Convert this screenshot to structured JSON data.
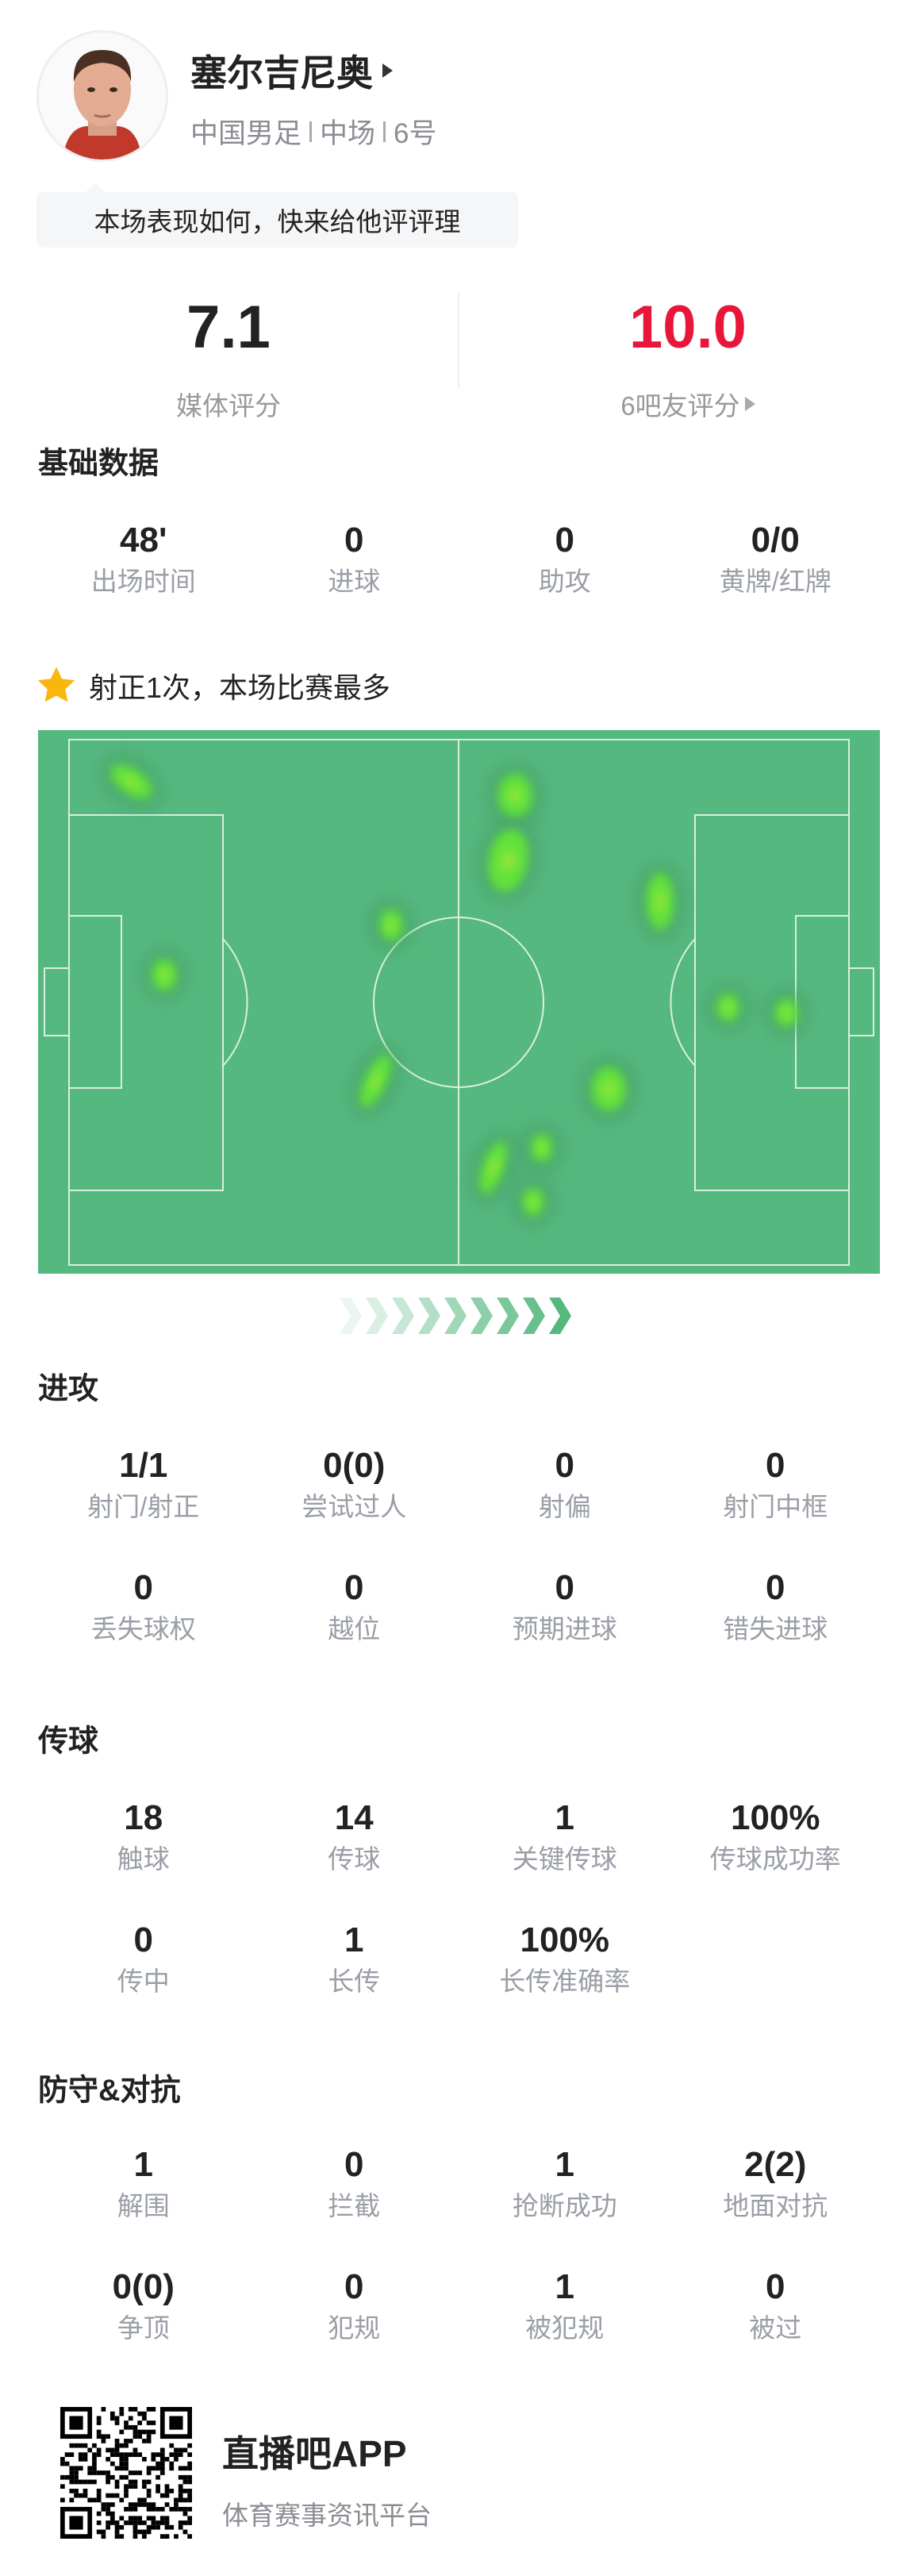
{
  "player": {
    "name": "塞尔吉尼奥",
    "team": "中国男足",
    "position": "中场",
    "number": "6号",
    "prompt": "本场表现如何，快来给他评评理"
  },
  "ratings": {
    "media": {
      "value": "7.1",
      "label": "媒体评分",
      "color": "#222222"
    },
    "fans": {
      "value": "10.0",
      "label": "6吧友评分",
      "color": "#e8173a"
    }
  },
  "basic": {
    "title": "基础数据",
    "stats": [
      {
        "value": "48'",
        "label": "出场时间"
      },
      {
        "value": "0",
        "label": "进球"
      },
      {
        "value": "0",
        "label": "助攻"
      },
      {
        "value": "0/0",
        "label": "黄牌/红牌"
      }
    ]
  },
  "highlight": {
    "icon": "star-icon",
    "text": "射正1次，本场比赛最多",
    "icon_color": "#f8b60f"
  },
  "heatmap": {
    "pitch_color": "#55b87e",
    "line_color": "#d9f0e0",
    "points": [
      {
        "x": 8,
        "y": 8
      },
      {
        "x": 12.2,
        "y": 44.8
      },
      {
        "x": 41.3,
        "y": 35.3
      },
      {
        "x": 39.3,
        "y": 65
      },
      {
        "x": 57.2,
        "y": 10.7
      },
      {
        "x": 56.3,
        "y": 23
      },
      {
        "x": 75.8,
        "y": 30.8
      },
      {
        "x": 84.5,
        "y": 51
      },
      {
        "x": 92,
        "y": 52
      },
      {
        "x": 69.2,
        "y": 66.5
      },
      {
        "x": 54.4,
        "y": 81.5
      },
      {
        "x": 60.6,
        "y": 77.7
      },
      {
        "x": 59.5,
        "y": 88
      }
    ],
    "direction_icon": "attack-direction-chevrons-icon"
  },
  "attack": {
    "title": "进攻",
    "stats": [
      {
        "value": "1/1",
        "label": "射门/射正"
      },
      {
        "value": "0(0)",
        "label": "尝试过人"
      },
      {
        "value": "0",
        "label": "射偏"
      },
      {
        "value": "0",
        "label": "射门中框"
      },
      {
        "value": "0",
        "label": "丢失球权"
      },
      {
        "value": "0",
        "label": "越位"
      },
      {
        "value": "0",
        "label": "预期进球"
      },
      {
        "value": "0",
        "label": "错失进球"
      }
    ]
  },
  "passing": {
    "title": "传球",
    "stats": [
      {
        "value": "18",
        "label": "触球"
      },
      {
        "value": "14",
        "label": "传球"
      },
      {
        "value": "1",
        "label": "关键传球"
      },
      {
        "value": "100%",
        "label": "传球成功率"
      },
      {
        "value": "0",
        "label": "传中"
      },
      {
        "value": "1",
        "label": "长传"
      },
      {
        "value": "100%",
        "label": "长传准确率"
      }
    ]
  },
  "defense": {
    "title": "防守&对抗",
    "stats": [
      {
        "value": "1",
        "label": "解围"
      },
      {
        "value": "0",
        "label": "拦截"
      },
      {
        "value": "1",
        "label": "抢断成功"
      },
      {
        "value": "2(2)",
        "label": "地面对抗"
      },
      {
        "value": "0(0)",
        "label": "争顶"
      },
      {
        "value": "0",
        "label": "犯规"
      },
      {
        "value": "1",
        "label": "被犯规"
      },
      {
        "value": "0",
        "label": "被过"
      }
    ]
  },
  "footer": {
    "app_name": "直播吧APP",
    "tagline": "体育赛事资讯平台",
    "qr_icon": "qr-code-icon"
  }
}
